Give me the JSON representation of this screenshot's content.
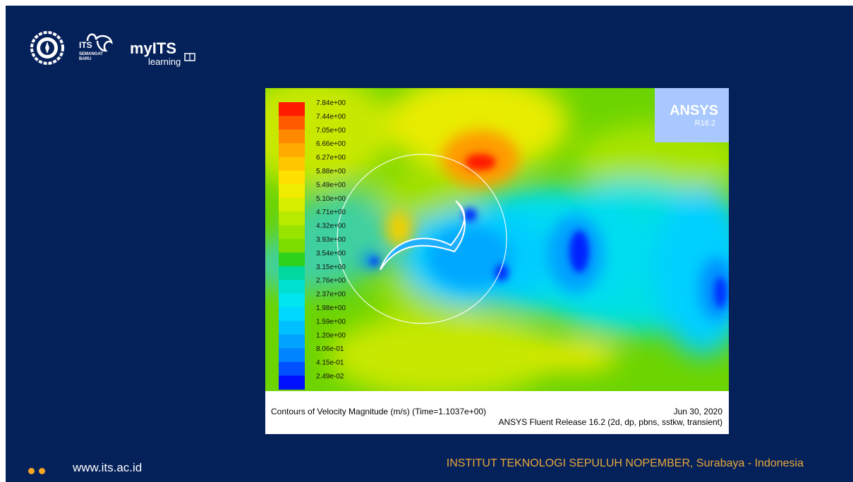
{
  "header": {
    "logo_seal": "its-seal-logo",
    "logo_semangat": {
      "line1": "ITS",
      "line2": "SEMANGAT",
      "line3": "BARU"
    },
    "logo_myits": {
      "brand": "myITS",
      "sub": "learning"
    }
  },
  "figure": {
    "legend_labels": [
      "7.84e+00",
      "7.44e+00",
      "7.05e+00",
      "6.66e+00",
      "6.27e+00",
      "5.88e+00",
      "5.49e+00",
      "5.10e+00",
      "4.71e+00",
      "4.32e+00",
      "3.93e+00",
      "3.54e+00",
      "3.15e+00",
      "2.76e+00",
      "2.37e+00",
      "1.98e+00",
      "1.59e+00",
      "1.20e+00",
      "8.06e-01",
      "4.15e-01",
      "2.49e-02"
    ],
    "legend_colors": [
      "#ff1a00",
      "#ff5a00",
      "#ff8a00",
      "#ffaa00",
      "#ffc600",
      "#ffe000",
      "#f0ec00",
      "#d6ee00",
      "#b8ea00",
      "#98e400",
      "#7cdc00",
      "#2fd21a",
      "#00d8a0",
      "#00e0d0",
      "#00e6f0",
      "#00d8ff",
      "#00c0ff",
      "#00a4ff",
      "#0084ff",
      "#0050ff",
      "#0010ff"
    ],
    "badge": {
      "title": "ANSYS",
      "version": "R16.2"
    },
    "caption": "Contours of Velocity Magnitude (m/s)  (Time=1.1037e+00)",
    "date": "Jun 30, 2020",
    "release": "ANSYS Fluent Release 16.2 (2d, dp, pbns, sstkw, transient)"
  },
  "footer": {
    "url": "www.its.ac.id",
    "institute": "INSTITUT TEKNOLOGI SEPULUH NOPEMBER, Surabaya - Indonesia"
  },
  "colors": {
    "slide_bg": "#05215a",
    "accent": "#e8a83a"
  }
}
